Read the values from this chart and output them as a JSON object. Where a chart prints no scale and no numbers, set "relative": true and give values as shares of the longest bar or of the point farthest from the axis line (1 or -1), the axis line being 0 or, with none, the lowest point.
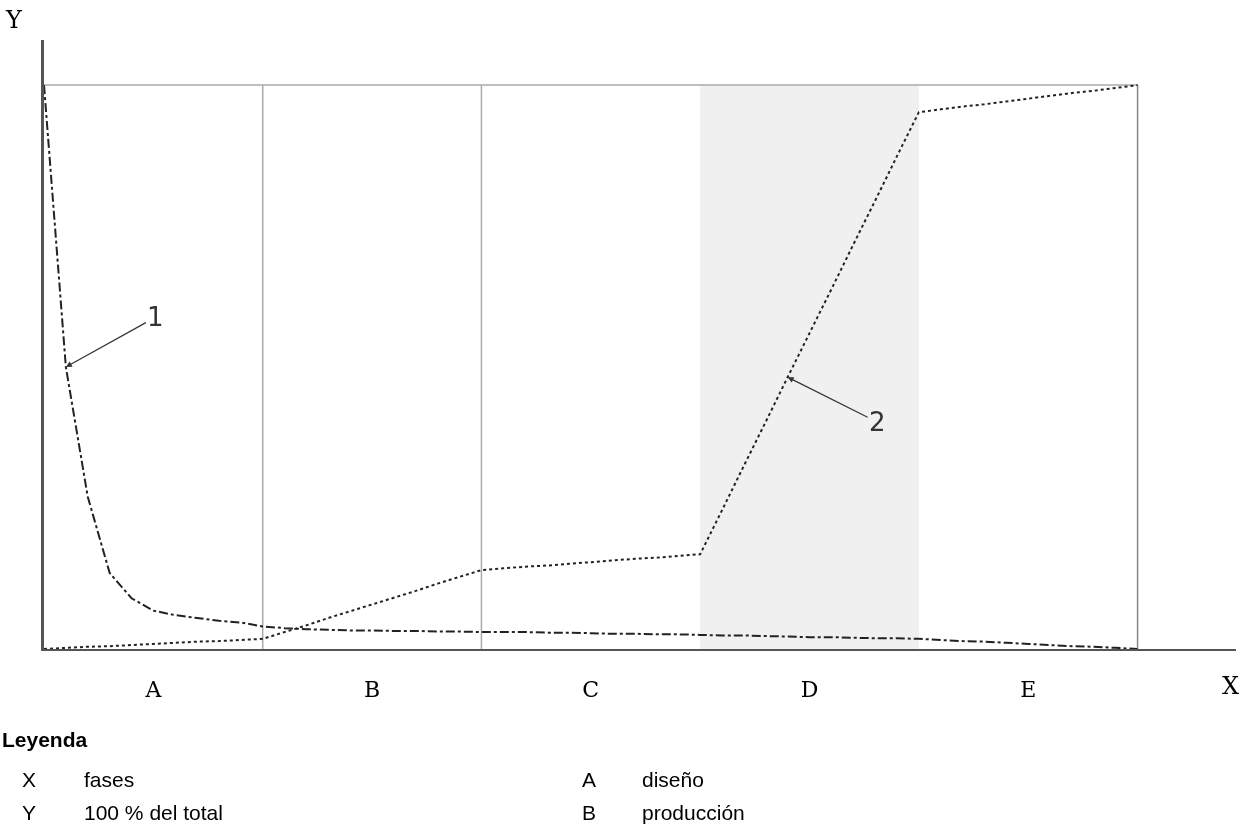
{
  "chart_data": {
    "type": "line",
    "relative": true,
    "xlabel": "X",
    "ylabel": "Y",
    "categories": [
      null,
      null,
      null,
      null,
      null,
      "A",
      null,
      null,
      null,
      null,
      null,
      null,
      null,
      null,
      null,
      "B",
      null,
      null,
      null,
      null,
      null,
      null,
      null,
      null,
      null,
      "C",
      null,
      null,
      null,
      null,
      null,
      null,
      null,
      null,
      null,
      "D",
      null,
      null,
      null,
      null,
      null,
      null,
      null,
      null,
      null,
      "E",
      null,
      null,
      null,
      null,
      null
    ],
    "series": [
      {
        "color": "#222222",
        "line_style": "dashed",
        "values": [
          1,
          0.5,
          0.27,
          0.135,
          0.09,
          0.068,
          0.06,
          0.055,
          0.05,
          0.047,
          0.04,
          0.037,
          0.035,
          0.034,
          0.033,
          0.033,
          0.032,
          0.032,
          0.031,
          0.031,
          0.03,
          0.03,
          0.03,
          0.029,
          0.029,
          0.028,
          0.027,
          0.027,
          0.026,
          0.026,
          0.025,
          0.024,
          0.024,
          0.023,
          0.022,
          0.021,
          0.021,
          0.02,
          0.019,
          0.019,
          0.018,
          0.016,
          0.014,
          0.013,
          0.011,
          0.009,
          0.007,
          0.005,
          0.004,
          0.002,
          0
        ]
      },
      {
        "color": "#222222",
        "line_style": "dotted",
        "values": [
          0,
          0.002,
          0.004,
          0.005,
          0.007,
          0.009,
          0.011,
          0.013,
          0.014,
          0.016,
          0.018,
          0.03,
          0.042,
          0.055,
          0.067,
          0.079,
          0.091,
          0.103,
          0.116,
          0.128,
          0.14,
          0.143,
          0.146,
          0.148,
          0.151,
          0.154,
          0.157,
          0.16,
          0.162,
          0.165,
          0.168,
          0.246,
          0.325,
          0.403,
          0.482,
          0.56,
          0.638,
          0.717,
          0.795,
          0.874,
          0.952,
          0.957,
          0.962,
          0.966,
          0.971,
          0.976,
          0.981,
          0.986,
          0.99,
          0.995,
          1.0
        ]
      }
    ],
    "annotations": [
      "1",
      "2",
      "Leyenda",
      "X",
      "fases",
      "A",
      "diseño",
      "Y",
      "100 % del total",
      "B",
      "producción"
    ],
    "marker": "none"
  }
}
